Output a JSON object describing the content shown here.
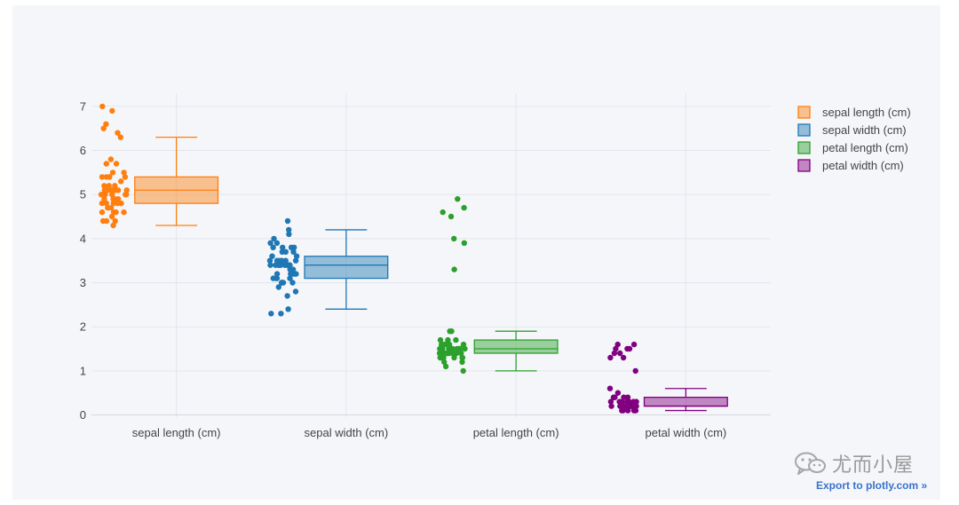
{
  "chart_data": {
    "type": "box",
    "title": "",
    "xlabel": "",
    "ylabel": "",
    "ylim": [
      -0.05,
      7.3
    ],
    "yticks": [
      0,
      1,
      2,
      3,
      4,
      5,
      6,
      7
    ],
    "grid": true,
    "legend_position": "top-right",
    "categories": [
      "sepal length (cm)",
      "sepal width (cm)",
      "petal length (cm)",
      "petal width (cm)"
    ],
    "series": [
      {
        "name": "sepal length (cm)",
        "color": "#ff7f0e",
        "box": {
          "min": 4.3,
          "q1": 4.8,
          "median": 5.1,
          "q3": 5.4,
          "max": 6.3
        },
        "points": [
          4.3,
          4.4,
          4.4,
          4.4,
          4.5,
          4.6,
          4.6,
          4.6,
          4.6,
          4.7,
          4.7,
          4.8,
          4.8,
          4.8,
          4.8,
          4.8,
          4.9,
          4.9,
          4.9,
          4.9,
          5.0,
          5.0,
          5.0,
          5.0,
          5.0,
          5.0,
          5.0,
          5.0,
          5.1,
          5.1,
          5.1,
          5.1,
          5.1,
          5.1,
          5.1,
          5.1,
          5.2,
          5.2,
          5.2,
          5.3,
          5.4,
          5.4,
          5.4,
          5.4,
          5.4,
          5.5,
          5.5,
          5.7,
          5.7,
          5.8,
          6.3,
          6.4,
          6.5,
          6.6,
          6.9,
          7.0
        ]
      },
      {
        "name": "sepal width (cm)",
        "color": "#1f77b4",
        "box": {
          "min": 2.4,
          "q1": 3.1,
          "median": 3.4,
          "q3": 3.6,
          "max": 4.2
        },
        "points": [
          2.3,
          2.3,
          2.4,
          2.7,
          2.8,
          2.9,
          3.0,
          3.0,
          3.0,
          3.0,
          3.0,
          3.0,
          3.1,
          3.1,
          3.1,
          3.1,
          3.2,
          3.2,
          3.2,
          3.2,
          3.2,
          3.3,
          3.3,
          3.4,
          3.4,
          3.4,
          3.4,
          3.4,
          3.4,
          3.4,
          3.4,
          3.4,
          3.5,
          3.5,
          3.5,
          3.5,
          3.5,
          3.5,
          3.6,
          3.6,
          3.7,
          3.7,
          3.7,
          3.8,
          3.8,
          3.8,
          3.8,
          3.9,
          3.9,
          4.0,
          4.1,
          4.2,
          4.4
        ]
      },
      {
        "name": "petal length (cm)",
        "color": "#2ca02c",
        "box": {
          "min": 1.0,
          "q1": 1.4,
          "median": 1.5,
          "q3": 1.7,
          "max": 1.9
        },
        "points": [
          1.0,
          1.1,
          1.2,
          1.2,
          1.3,
          1.3,
          1.3,
          1.3,
          1.3,
          1.3,
          1.3,
          1.4,
          1.4,
          1.4,
          1.4,
          1.4,
          1.4,
          1.4,
          1.4,
          1.4,
          1.4,
          1.4,
          1.4,
          1.4,
          1.5,
          1.5,
          1.5,
          1.5,
          1.5,
          1.5,
          1.5,
          1.5,
          1.5,
          1.5,
          1.5,
          1.5,
          1.5,
          1.6,
          1.6,
          1.6,
          1.6,
          1.6,
          1.6,
          1.6,
          1.7,
          1.7,
          1.7,
          1.9,
          1.9,
          3.3,
          3.9,
          4.0,
          4.5,
          4.6,
          4.7,
          4.9
        ]
      },
      {
        "name": "petal width (cm)",
        "color": "#800080",
        "box": {
          "min": 0.1,
          "q1": 0.2,
          "median": 0.2,
          "q3": 0.4,
          "max": 0.6
        },
        "points": [
          0.1,
          0.1,
          0.1,
          0.1,
          0.1,
          0.2,
          0.2,
          0.2,
          0.2,
          0.2,
          0.2,
          0.2,
          0.2,
          0.2,
          0.2,
          0.2,
          0.2,
          0.2,
          0.2,
          0.2,
          0.2,
          0.2,
          0.2,
          0.2,
          0.2,
          0.3,
          0.3,
          0.3,
          0.3,
          0.3,
          0.3,
          0.3,
          0.4,
          0.4,
          0.4,
          0.4,
          0.4,
          0.5,
          0.6,
          1.0,
          1.3,
          1.3,
          1.4,
          1.4,
          1.5,
          1.5,
          1.5,
          1.6,
          1.6
        ]
      }
    ]
  },
  "footer": {
    "watermark_text": "尤而小屋",
    "export_label": "Export to plotly.com »"
  }
}
